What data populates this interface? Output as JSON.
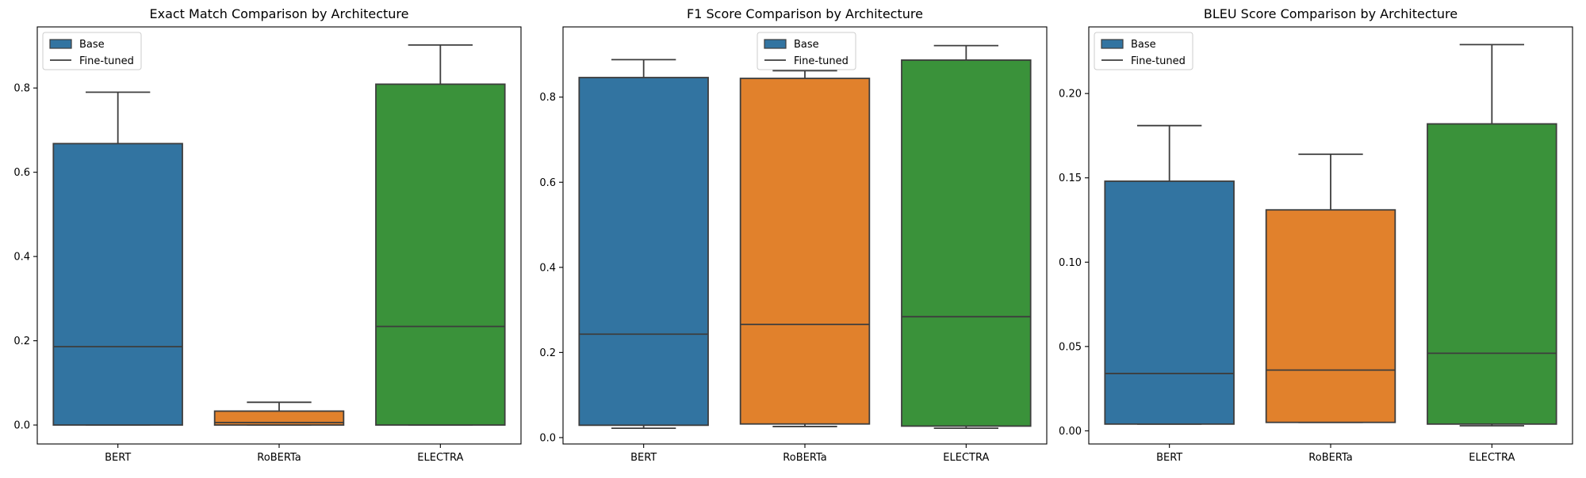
{
  "chart_data": [
    {
      "type": "box",
      "title": "Exact Match Comparison by Architecture",
      "xlabel": "",
      "ylabel": "",
      "categories": [
        "BERT",
        "RoBERTa",
        "ELECTRA"
      ],
      "colors": [
        "#3274a1",
        "#e1812c",
        "#3a923a"
      ],
      "ylim": [
        -0.045,
        0.945
      ],
      "yticks": [
        0.0,
        0.2,
        0.4,
        0.6,
        0.8
      ],
      "ytick_labels": [
        "0.0",
        "0.2",
        "0.4",
        "0.6",
        "0.8"
      ],
      "boxes": [
        {
          "category": "BERT",
          "whisker_low": 0.0,
          "q1": 0.0,
          "median": 0.186,
          "q3": 0.668,
          "whisker_high": 0.79
        },
        {
          "category": "RoBERTa",
          "whisker_low": 0.0,
          "q1": 0.0,
          "median": 0.006,
          "q3": 0.033,
          "whisker_high": 0.054
        },
        {
          "category": "ELECTRA",
          "whisker_low": 0.0,
          "q1": 0.0,
          "median": 0.234,
          "q3": 0.809,
          "whisker_high": 0.902
        }
      ],
      "legend": {
        "position": "upper left",
        "entries": [
          "Base",
          "Fine-tuned"
        ]
      }
    },
    {
      "type": "box",
      "title": "F1 Score Comparison by Architecture",
      "xlabel": "",
      "ylabel": "",
      "categories": [
        "BERT",
        "RoBERTa",
        "ELECTRA"
      ],
      "colors": [
        "#3274a1",
        "#e1812c",
        "#3a923a"
      ],
      "ylim": [
        -0.015,
        0.965
      ],
      "yticks": [
        0.0,
        0.2,
        0.4,
        0.6,
        0.8
      ],
      "ytick_labels": [
        "0.0",
        "0.2",
        "0.4",
        "0.6",
        "0.8"
      ],
      "boxes": [
        {
          "category": "BERT",
          "whisker_low": 0.022,
          "q1": 0.029,
          "median": 0.243,
          "q3": 0.846,
          "whisker_high": 0.888
        },
        {
          "category": "RoBERTa",
          "whisker_low": 0.026,
          "q1": 0.032,
          "median": 0.266,
          "q3": 0.844,
          "whisker_high": 0.862
        },
        {
          "category": "ELECTRA",
          "whisker_low": 0.022,
          "q1": 0.027,
          "median": 0.284,
          "q3": 0.887,
          "whisker_high": 0.921
        }
      ],
      "legend": {
        "position": "upper center",
        "entries": [
          "Base",
          "Fine-tuned"
        ]
      }
    },
    {
      "type": "box",
      "title": "BLEU Score Comparison by Architecture",
      "xlabel": "",
      "ylabel": "",
      "categories": [
        "BERT",
        "RoBERTa",
        "ELECTRA"
      ],
      "colors": [
        "#3274a1",
        "#e1812c",
        "#3a923a"
      ],
      "ylim": [
        -0.0078,
        0.2395
      ],
      "yticks": [
        0.0,
        0.05,
        0.1,
        0.15,
        0.2
      ],
      "ytick_labels": [
        "0.00",
        "0.05",
        "0.10",
        "0.15",
        "0.20"
      ],
      "boxes": [
        {
          "category": "BERT",
          "whisker_low": 0.004,
          "q1": 0.004,
          "median": 0.034,
          "q3": 0.148,
          "whisker_high": 0.181
        },
        {
          "category": "RoBERTa",
          "whisker_low": 0.005,
          "q1": 0.005,
          "median": 0.036,
          "q3": 0.131,
          "whisker_high": 0.164
        },
        {
          "category": "ELECTRA",
          "whisker_low": 0.003,
          "q1": 0.004,
          "median": 0.046,
          "q3": 0.182,
          "whisker_high": 0.229
        }
      ],
      "legend": {
        "position": "upper left",
        "entries": [
          "Base",
          "Fine-tuned"
        ]
      }
    }
  ]
}
